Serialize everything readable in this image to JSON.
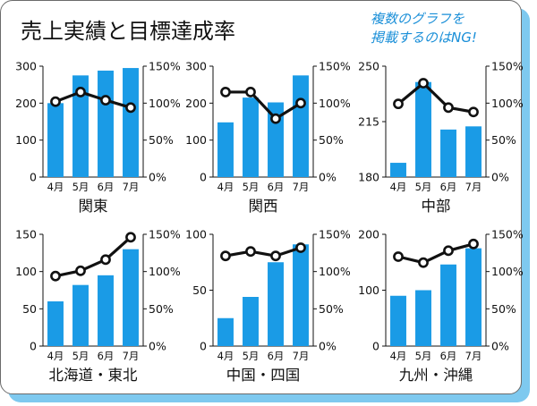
{
  "title": "売上実績と目標達成率",
  "note": [
    "複数のグラフを",
    "掲載するのはNG!"
  ],
  "colors": {
    "bar": "#1a9be6",
    "line": "#111111",
    "accent": "#1a8fd8",
    "shadow": "#7ec9ef"
  },
  "chart_data": [
    {
      "type": "bar",
      "title": "関東",
      "categories": [
        "4月",
        "5月",
        "6月",
        "7月"
      ],
      "y_left": {
        "min": 0,
        "max": 300,
        "ticks": [
          "0",
          "100",
          "200",
          "300"
        ]
      },
      "y_right": {
        "min": 0,
        "max": 150,
        "ticks": [
          "0%",
          "50%",
          "100%",
          "150%"
        ]
      },
      "series": [
        {
          "type": "bar",
          "axis": "left",
          "values": [
            200,
            275,
            288,
            295
          ]
        },
        {
          "type": "line",
          "axis": "right",
          "values": [
            102,
            115,
            104,
            94
          ]
        }
      ]
    },
    {
      "type": "bar",
      "title": "関西",
      "categories": [
        "4月",
        "5月",
        "6月",
        "7月"
      ],
      "y_left": {
        "min": 0,
        "max": 300,
        "ticks": [
          "0",
          "100",
          "200",
          "300"
        ]
      },
      "y_right": {
        "min": 0,
        "max": 150,
        "ticks": [
          "0%",
          "50%",
          "100%",
          "150%"
        ]
      },
      "series": [
        {
          "type": "bar",
          "axis": "left",
          "values": [
            148,
            215,
            202,
            275
          ]
        },
        {
          "type": "line",
          "axis": "right",
          "values": [
            115,
            115,
            79,
            100
          ]
        }
      ]
    },
    {
      "type": "bar",
      "title": "中部",
      "categories": [
        "4月",
        "5月",
        "6月",
        "7月"
      ],
      "y_left": {
        "min": 180,
        "max": 250,
        "ticks": [
          "180",
          "215",
          "250"
        ]
      },
      "y_right": {
        "min": 0,
        "max": 150,
        "ticks": [
          "0%",
          "50%",
          "100%",
          "150%"
        ]
      },
      "series": [
        {
          "type": "bar",
          "axis": "left",
          "values": [
            189,
            240,
            210,
            212
          ]
        },
        {
          "type": "line",
          "axis": "right",
          "values": [
            99,
            127,
            94,
            88
          ]
        }
      ]
    },
    {
      "type": "bar",
      "title": "北海道・東北",
      "categories": [
        "4月",
        "5月",
        "6月",
        "7月"
      ],
      "y_left": {
        "min": 0,
        "max": 150,
        "ticks": [
          "0",
          "50",
          "100",
          "150"
        ]
      },
      "y_right": {
        "min": 0,
        "max": 150,
        "ticks": [
          "0%",
          "50%",
          "100%",
          "150%"
        ]
      },
      "series": [
        {
          "type": "bar",
          "axis": "left",
          "values": [
            60,
            82,
            95,
            130
          ]
        },
        {
          "type": "line",
          "axis": "right",
          "values": [
            94,
            101,
            116,
            146
          ]
        }
      ]
    },
    {
      "type": "bar",
      "title": "中国・四国",
      "categories": [
        "4月",
        "5月",
        "6月",
        "7月"
      ],
      "y_left": {
        "min": 0,
        "max": 100,
        "ticks": [
          "0",
          "50",
          "100"
        ]
      },
      "y_right": {
        "min": 0,
        "max": 150,
        "ticks": [
          "0%",
          "50%",
          "100%",
          "150%"
        ]
      },
      "series": [
        {
          "type": "bar",
          "axis": "left",
          "values": [
            25,
            44,
            75,
            91
          ]
        },
        {
          "type": "line",
          "axis": "right",
          "values": [
            121,
            127,
            121,
            132
          ]
        }
      ]
    },
    {
      "type": "bar",
      "title": "九州・沖縄",
      "categories": [
        "4月",
        "5月",
        "6月",
        "7月"
      ],
      "y_left": {
        "min": 0,
        "max": 200,
        "ticks": [
          "0",
          "100",
          "200"
        ]
      },
      "y_right": {
        "min": 0,
        "max": 150,
        "ticks": [
          "0%",
          "50%",
          "100%",
          "150%"
        ]
      },
      "series": [
        {
          "type": "bar",
          "axis": "left",
          "values": [
            90,
            100,
            146,
            175
          ]
        },
        {
          "type": "line",
          "axis": "right",
          "values": [
            120,
            112,
            128,
            137
          ]
        }
      ]
    }
  ]
}
